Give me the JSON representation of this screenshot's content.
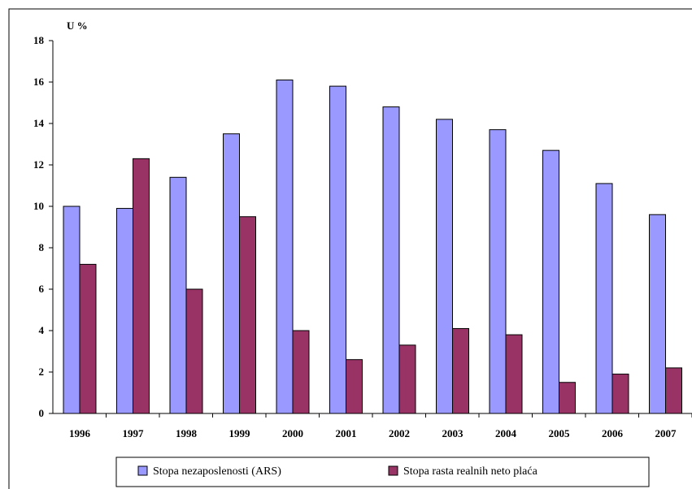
{
  "chart_data": {
    "type": "bar",
    "title": "",
    "unit_label": "U %",
    "categories": [
      "1996",
      "1997",
      "1998",
      "1999",
      "2000",
      "2001",
      "2002",
      "2003",
      "2004",
      "2005",
      "2006",
      "2007"
    ],
    "series": [
      {
        "name": "Stopa nezaposlenosti (ARS)",
        "color": "#9999ff",
        "values": [
          10.0,
          9.9,
          11.4,
          13.5,
          16.1,
          15.8,
          14.8,
          14.2,
          13.7,
          12.7,
          11.1,
          9.6
        ]
      },
      {
        "name": "Stopa rasta realnih neto plaća",
        "color": "#993366",
        "values": [
          7.2,
          12.3,
          6.0,
          9.5,
          4.0,
          2.6,
          3.3,
          4.1,
          3.8,
          1.5,
          1.9,
          2.2
        ]
      }
    ],
    "ylim": [
      0,
      18
    ],
    "yticks": [
      "0",
      "2",
      "4",
      "6",
      "8",
      "10",
      "12",
      "14",
      "16",
      "18"
    ],
    "grid": false,
    "legend_position": "bottom"
  }
}
